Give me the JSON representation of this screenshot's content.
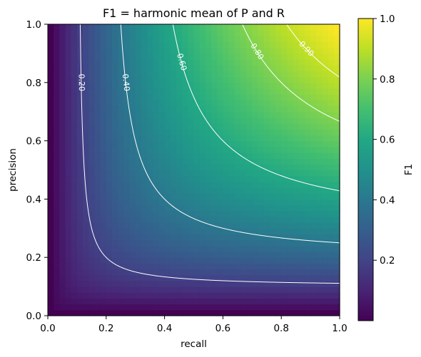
{
  "chart_data": {
    "type": "heatmap",
    "title": "F1 = harmonic mean of P and R",
    "xlabel": "recall",
    "ylabel": "precision",
    "colorbar_label": "F1",
    "colormap": "viridis",
    "xlim": [
      0.0,
      1.0
    ],
    "ylim": [
      0.0,
      1.0
    ],
    "grid_resolution": 50,
    "value_range": [
      0.0,
      1.0
    ],
    "xticks": [
      "0.0",
      "0.2",
      "0.4",
      "0.6",
      "0.8",
      "1.0"
    ],
    "yticks": [
      "0.0",
      "0.2",
      "0.4",
      "0.6",
      "0.8",
      "1.0"
    ],
    "colorbar_ticks": [
      "0.2",
      "0.4",
      "0.6",
      "0.8",
      "1.0"
    ],
    "contour_levels": [
      {
        "level": 0.2,
        "label": "0.20"
      },
      {
        "level": 0.4,
        "label": "0.40"
      },
      {
        "level": 0.6,
        "label": "0.60"
      },
      {
        "level": 0.8,
        "label": "0.80"
      },
      {
        "level": 0.9,
        "label": "0.90"
      }
    ],
    "contour_color": "#ffffff",
    "grid": false
  }
}
